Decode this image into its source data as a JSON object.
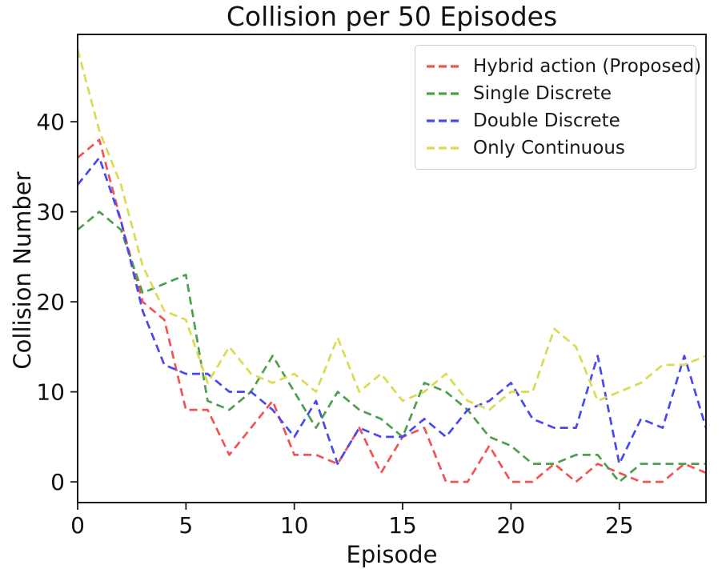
{
  "figure": {
    "title": "Collision per 50 Episodes",
    "xlabel": "Episode",
    "ylabel": "Collision Number"
  },
  "chart_data": {
    "type": "line",
    "title": "Collision per 50 Episodes",
    "xlabel": "Episode",
    "ylabel": "Collision Number",
    "line_style": "dashed",
    "grid": false,
    "legend_position": "upper right",
    "xlim": [
      0,
      29
    ],
    "ylim": [
      -2.3,
      49.7
    ],
    "xticks": [
      0,
      5,
      10,
      15,
      20,
      25
    ],
    "yticks": [
      0,
      10,
      20,
      30,
      40
    ],
    "x": [
      0,
      1,
      2,
      3,
      4,
      5,
      6,
      7,
      8,
      9,
      10,
      11,
      12,
      13,
      14,
      15,
      16,
      17,
      18,
      19,
      20,
      21,
      22,
      23,
      24,
      25,
      26,
      27,
      28,
      29
    ],
    "series": [
      {
        "name": "Hybrid action (Proposed)",
        "color": "#f25252",
        "values": [
          36,
          38,
          29,
          20,
          18,
          8,
          8,
          3,
          6,
          9,
          3,
          3,
          2,
          6,
          1,
          5,
          6,
          0,
          0,
          4,
          0,
          0,
          2,
          0,
          2,
          1,
          0,
          0,
          2,
          1
        ]
      },
      {
        "name": "Single Discrete",
        "color": "#4d9e4d",
        "values": [
          28,
          30,
          28,
          21,
          22,
          23,
          9,
          8,
          10,
          14,
          10,
          6,
          10,
          8,
          7,
          5,
          11,
          10,
          8,
          5,
          4,
          2,
          2,
          3,
          3,
          0,
          2,
          2,
          2,
          2
        ]
      },
      {
        "name": "Double Discrete",
        "color": "#4848f0",
        "values": [
          33,
          36,
          29,
          19,
          13,
          12,
          12,
          10,
          10,
          8,
          5,
          9,
          2,
          6,
          5,
          5,
          7,
          5,
          8,
          9,
          11,
          7,
          6,
          6,
          14,
          2,
          7,
          6,
          14,
          6
        ]
      },
      {
        "name": "Only Continuous",
        "color": "#dbdb52",
        "values": [
          48,
          39,
          33,
          24,
          19,
          18,
          11,
          15,
          12,
          11,
          12,
          10,
          16,
          10,
          12,
          9,
          10,
          12,
          9,
          8,
          10,
          10,
          17,
          15,
          9,
          10,
          11,
          13,
          13,
          14
        ]
      }
    ]
  }
}
